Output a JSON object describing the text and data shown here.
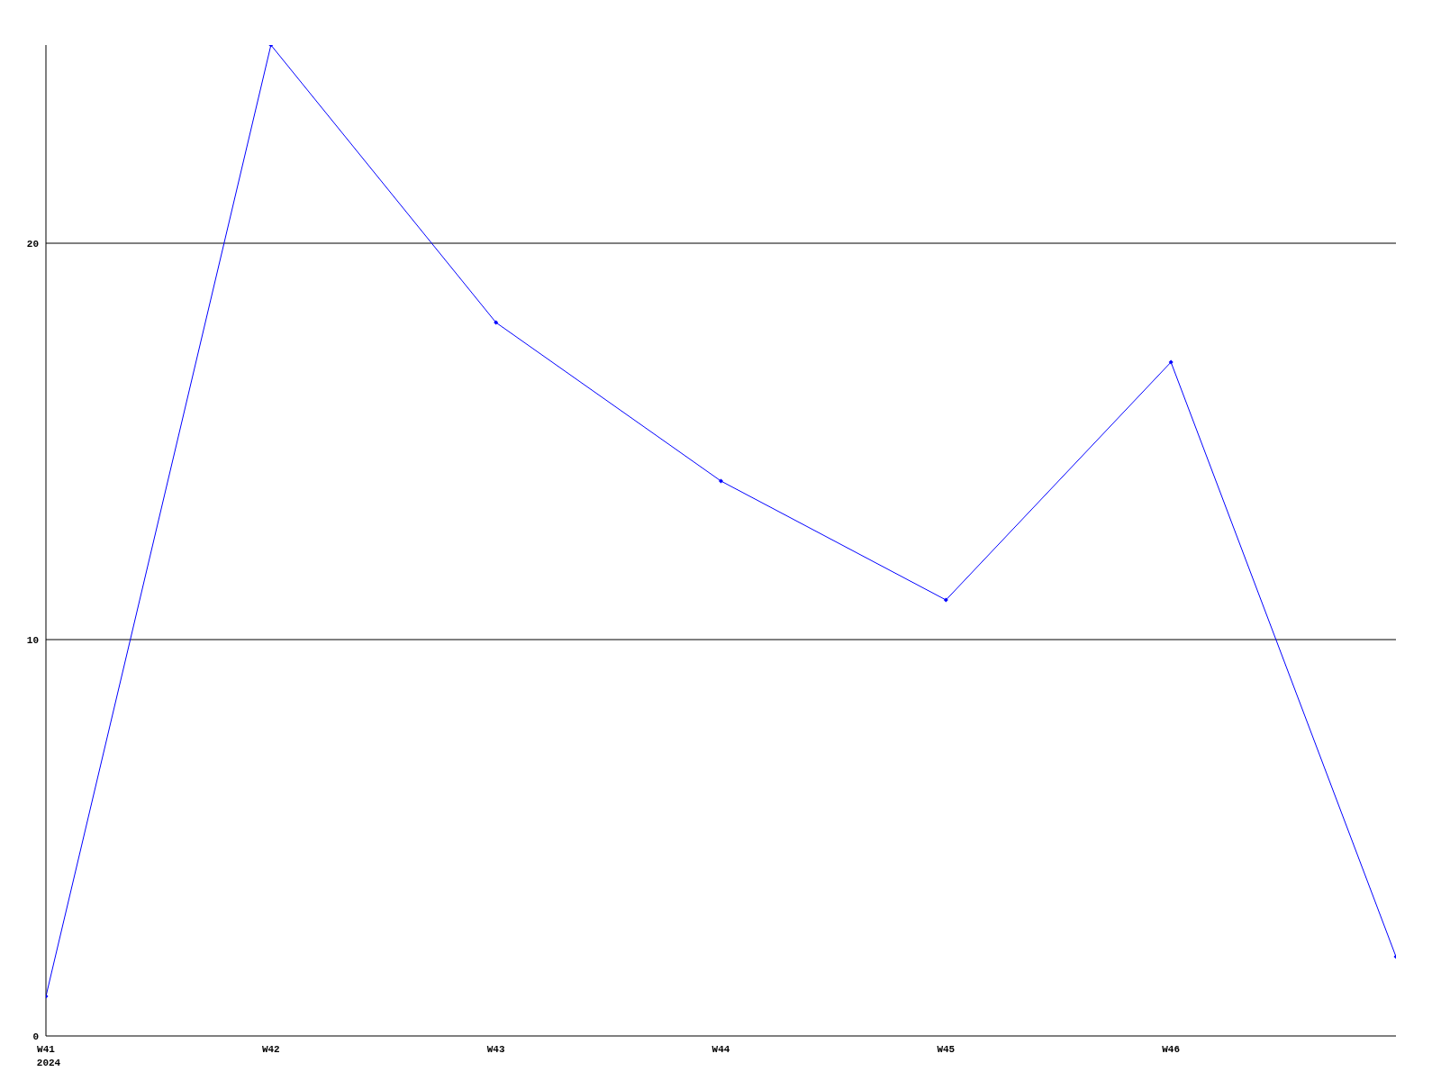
{
  "chart_data": {
    "type": "line",
    "categories": [
      "W41",
      "W42",
      "W43",
      "W44",
      "W45",
      "W46",
      null
    ],
    "series": [
      {
        "color": "#0000ff",
        "values": [
          1,
          25,
          18,
          14,
          11,
          17,
          2
        ]
      }
    ],
    "ylim": [
      0,
      25
    ],
    "yticks": [
      0,
      10,
      20
    ],
    "grid": "y",
    "marker": "diamond",
    "line_style": "solid",
    "annotations": [
      "2024"
    ]
  }
}
